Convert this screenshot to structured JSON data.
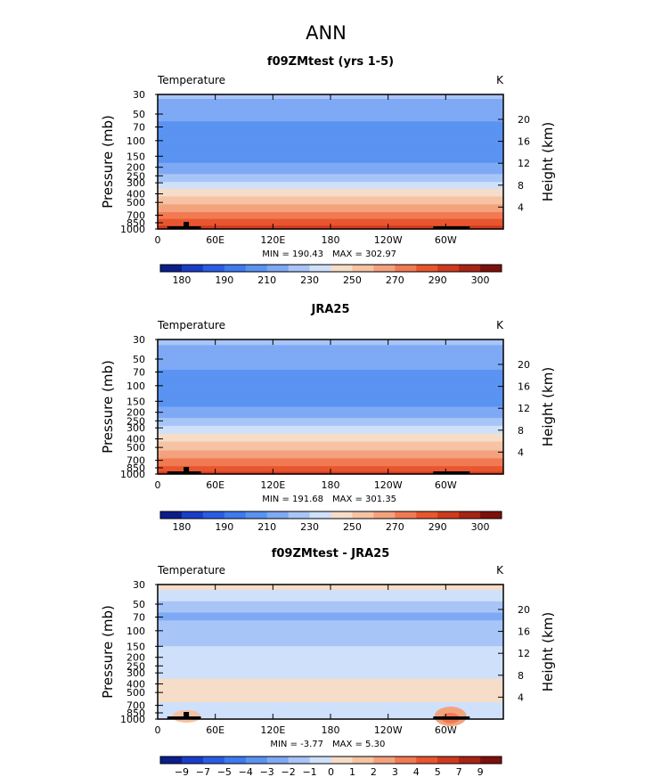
{
  "page": {
    "title": "ANN"
  },
  "chart_data": [
    {
      "type": "heatmap",
      "title": "f09ZMtest (yrs 1-5)",
      "variable_label": "Temperature",
      "units": "K",
      "ylabel": "Pressure (mb)",
      "y2label": "Height (km)",
      "xlabel": "",
      "x_ticks": [
        "0",
        "60E",
        "120E",
        "180",
        "120W",
        "60W"
      ],
      "x_tick_values": [
        0,
        60,
        120,
        180,
        240,
        300
      ],
      "xlim": [
        0,
        360
      ],
      "y_ticks": [
        "30",
        "50",
        "70",
        "100",
        "150",
        "200",
        "250",
        "300",
        "400",
        "500",
        "700",
        "850",
        "1000"
      ],
      "y_tick_values": [
        30,
        50,
        70,
        100,
        150,
        200,
        250,
        300,
        400,
        500,
        700,
        850,
        1000
      ],
      "ylim": [
        1000,
        30
      ],
      "y2_ticks": [
        "20",
        "16",
        "12",
        "8",
        "4"
      ],
      "y2_tick_values_km": [
        20,
        16,
        12,
        8,
        4
      ],
      "min_label": "MIN = 190.43",
      "max_label": "MAX = 302.97",
      "min": 190.43,
      "max": 302.97,
      "colorbar_labels": [
        "180",
        "190",
        "210",
        "230",
        "250",
        "270",
        "290",
        "300"
      ],
      "colorbar_colors": [
        "#0c1e8c",
        "#1a3dc8",
        "#2a5ce6",
        "#3e7af0",
        "#5a93f2",
        "#7ea9f4",
        "#a8c5f7",
        "#cfe0fa",
        "#f6ddc8",
        "#f6c3a4",
        "#f4a27e",
        "#f27a52",
        "#e85630",
        "#cf3a1e",
        "#a82414",
        "#7e100c"
      ],
      "profile": [
        {
          "p": 30,
          "v": 222
        },
        {
          "p": 50,
          "v": 214
        },
        {
          "p": 70,
          "v": 207
        },
        {
          "p": 100,
          "v": 200
        },
        {
          "p": 150,
          "v": 205
        },
        {
          "p": 200,
          "v": 213
        },
        {
          "p": 250,
          "v": 222
        },
        {
          "p": 300,
          "v": 232
        },
        {
          "p": 400,
          "v": 247
        },
        {
          "p": 500,
          "v": 258
        },
        {
          "p": 700,
          "v": 274
        },
        {
          "p": 850,
          "v": 285
        },
        {
          "p": 1000,
          "v": 295
        }
      ]
    },
    {
      "type": "heatmap",
      "title": "JRA25",
      "variable_label": "Temperature",
      "units": "K",
      "ylabel": "Pressure (mb)",
      "y2label": "Height (km)",
      "xlabel": "",
      "x_ticks": [
        "0",
        "60E",
        "120E",
        "180",
        "120W",
        "60W"
      ],
      "x_tick_values": [
        0,
        60,
        120,
        180,
        240,
        300
      ],
      "xlim": [
        0,
        360
      ],
      "y_ticks": [
        "30",
        "50",
        "70",
        "100",
        "150",
        "200",
        "250",
        "300",
        "400",
        "500",
        "700",
        "850",
        "1000"
      ],
      "y_tick_values": [
        30,
        50,
        70,
        100,
        150,
        200,
        250,
        300,
        400,
        500,
        700,
        850,
        1000
      ],
      "ylim": [
        1000,
        30
      ],
      "y2_ticks": [
        "20",
        "16",
        "12",
        "8",
        "4"
      ],
      "y2_tick_values_km": [
        20,
        16,
        12,
        8,
        4
      ],
      "min_label": "MIN = 191.68",
      "max_label": "MAX = 301.35",
      "min": 191.68,
      "max": 301.35,
      "colorbar_labels": [
        "180",
        "190",
        "210",
        "230",
        "250",
        "270",
        "290",
        "300"
      ],
      "colorbar_colors": [
        "#0c1e8c",
        "#1a3dc8",
        "#2a5ce6",
        "#3e7af0",
        "#5a93f2",
        "#7ea9f4",
        "#a8c5f7",
        "#cfe0fa",
        "#f6ddc8",
        "#f6c3a4",
        "#f4a27e",
        "#f27a52",
        "#e85630",
        "#cf3a1e",
        "#a82414",
        "#7e100c"
      ],
      "profile": [
        {
          "p": 30,
          "v": 222
        },
        {
          "p": 50,
          "v": 215
        },
        {
          "p": 70,
          "v": 209
        },
        {
          "p": 100,
          "v": 201
        },
        {
          "p": 150,
          "v": 206
        },
        {
          "p": 200,
          "v": 214
        },
        {
          "p": 250,
          "v": 223
        },
        {
          "p": 300,
          "v": 232
        },
        {
          "p": 400,
          "v": 246
        },
        {
          "p": 500,
          "v": 257
        },
        {
          "p": 700,
          "v": 272
        },
        {
          "p": 850,
          "v": 283
        },
        {
          "p": 1000,
          "v": 293
        }
      ]
    },
    {
      "type": "heatmap",
      "title": "f09ZMtest - JRA25",
      "variable_label": "Temperature",
      "units": "K",
      "ylabel": "Pressure (mb)",
      "y2label": "Height (km)",
      "xlabel": "",
      "x_ticks": [
        "0",
        "60E",
        "120E",
        "180",
        "120W",
        "60W"
      ],
      "x_tick_values": [
        0,
        60,
        120,
        180,
        240,
        300
      ],
      "xlim": [
        0,
        360
      ],
      "y_ticks": [
        "30",
        "50",
        "70",
        "100",
        "150",
        "200",
        "250",
        "300",
        "400",
        "500",
        "700",
        "850",
        "1000"
      ],
      "y_tick_values": [
        30,
        50,
        70,
        100,
        150,
        200,
        250,
        300,
        400,
        500,
        700,
        850,
        1000
      ],
      "ylim": [
        1000,
        30
      ],
      "y2_ticks": [
        "20",
        "16",
        "12",
        "8",
        "4"
      ],
      "y2_tick_values_km": [
        20,
        16,
        12,
        8,
        4
      ],
      "min_label": "MIN =   -3.77",
      "max_label": "MAX =    5.30",
      "min": -3.77,
      "max": 5.3,
      "colorbar_labels": [
        "-9",
        "-7",
        "-5",
        "-4",
        "-3",
        "-2",
        "-1",
        "0",
        "1",
        "2",
        "3",
        "4",
        "5",
        "7",
        "9"
      ],
      "colorbar_colors": [
        "#0c1e8c",
        "#1a3dc8",
        "#2a5ce6",
        "#3e7af0",
        "#5a93f2",
        "#7ea9f4",
        "#a8c5f7",
        "#cfe0fa",
        "#f6ddc8",
        "#f6c3a4",
        "#f4a27e",
        "#f27a52",
        "#e85630",
        "#cf3a1e",
        "#a82414",
        "#7e100c"
      ],
      "profile": [
        {
          "p": 30,
          "v": 0.5
        },
        {
          "p": 40,
          "v": -0.5
        },
        {
          "p": 55,
          "v": -1.5
        },
        {
          "p": 70,
          "v": -2.5
        },
        {
          "p": 85,
          "v": -1.5
        },
        {
          "p": 100,
          "v": -1.5
        },
        {
          "p": 150,
          "v": -1.0
        },
        {
          "p": 200,
          "v": -0.5
        },
        {
          "p": 300,
          "v": -0.5
        },
        {
          "p": 400,
          "v": 0.5
        },
        {
          "p": 500,
          "v": 0.5
        },
        {
          "p": 600,
          "v": 0.5
        },
        {
          "p": 700,
          "v": -0.5
        },
        {
          "p": 850,
          "v": -0.5
        },
        {
          "p": 1000,
          "v": -0.5
        }
      ]
    }
  ]
}
